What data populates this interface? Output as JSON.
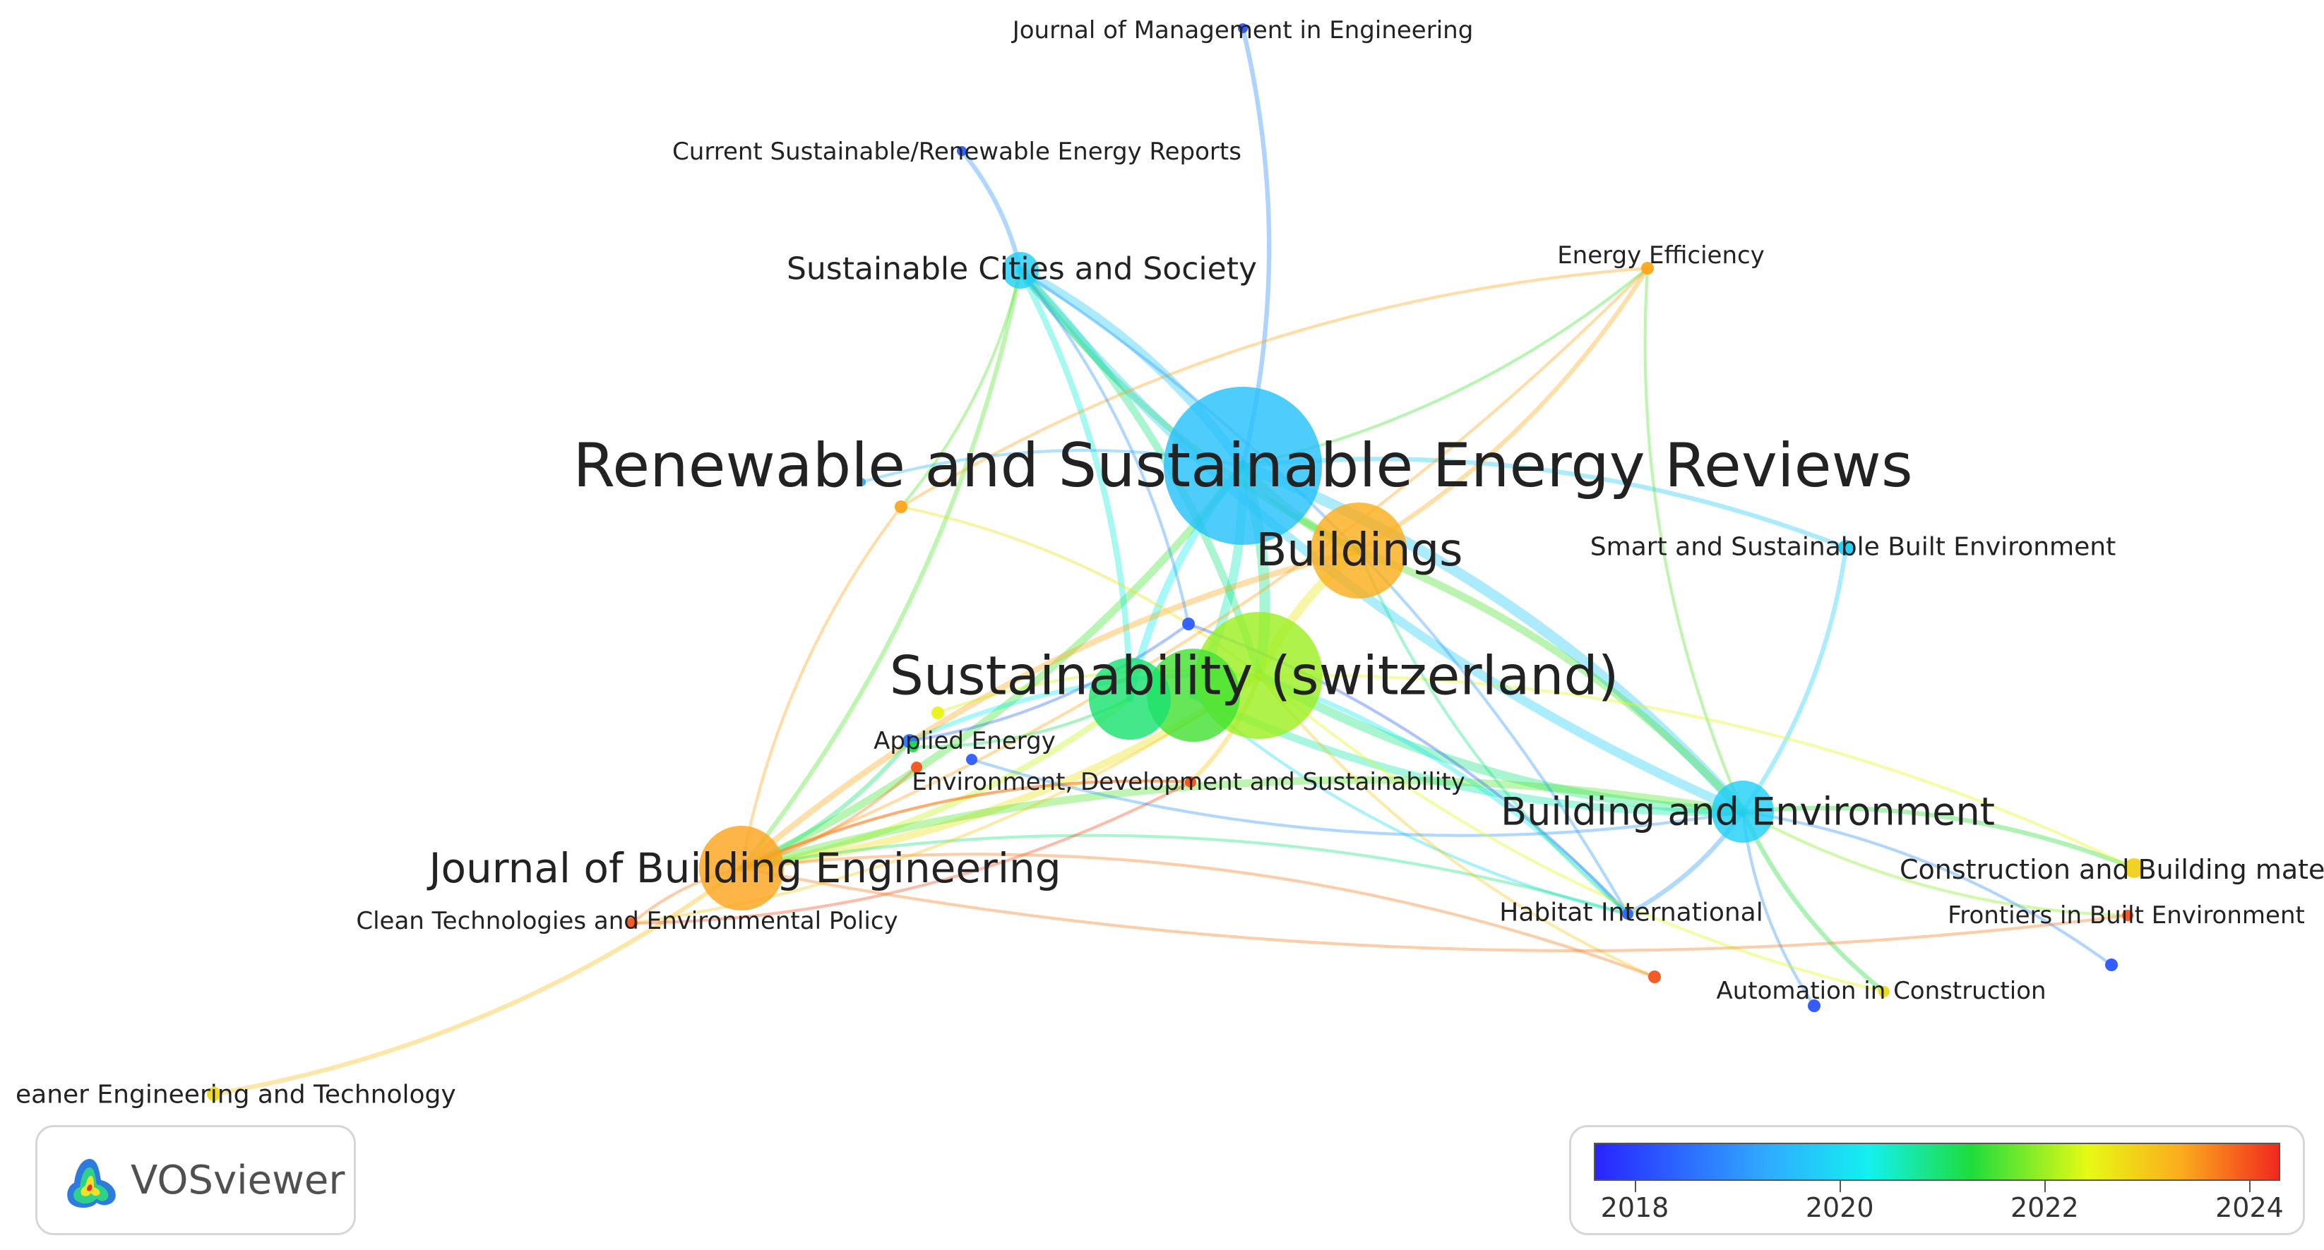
{
  "network": {
    "nodes": [
      {
        "id": "rser",
        "label": "Renewable and Sustainable Energy Reviews",
        "year": 2019.6,
        "weight": 120,
        "label_size": 86
      },
      {
        "id": "sust",
        "label": "Sustainability (switzerland)",
        "year": 2022.0,
        "weight": 100,
        "label_size": 76
      },
      {
        "id": "sust2",
        "label": "",
        "year": 2021.5,
        "weight": 70,
        "label_size": 0
      },
      {
        "id": "sust3",
        "label": "",
        "year": 2021.0,
        "weight": 55,
        "label_size": 0
      },
      {
        "id": "buildings",
        "label": "Buildings",
        "year": 2023.3,
        "weight": 66,
        "label_size": 64
      },
      {
        "id": "jbe",
        "label": "Journal of Building Engineering",
        "year": 2023.4,
        "weight": 60,
        "label_size": 58
      },
      {
        "id": "bae",
        "label": "Building and Environment",
        "year": 2019.8,
        "weight": 46,
        "label_size": 54
      },
      {
        "id": "scs",
        "label": "Sustainable Cities and Society",
        "year": 2019.8,
        "weight": 28,
        "label_size": 44
      },
      {
        "id": "jme",
        "label": "Journal of Management in Engineering",
        "year": 2018.2,
        "weight": 8,
        "label_size": 34
      },
      {
        "id": "csree",
        "label": "Current Sustainable/Renewable Energy Reports",
        "year": 2018.3,
        "weight": 8,
        "label_size": 34
      },
      {
        "id": "ee",
        "label": "Energy Efficiency",
        "year": 2023.4,
        "weight": 10,
        "label_size": 34
      },
      {
        "id": "ssbe",
        "label": "Smart and Sustainable Built Environment",
        "year": 2019.8,
        "weight": 12,
        "label_size": 36
      },
      {
        "id": "ae",
        "label": "Applied Energy",
        "year": 2018.6,
        "weight": 10,
        "label_size": 34
      },
      {
        "id": "eds",
        "label": "Environment, Development and Sustainability",
        "year": 2024.0,
        "weight": 8,
        "label_size": 34
      },
      {
        "id": "ctep",
        "label": "Clean Technologies and Environmental Policy",
        "year": 2024.0,
        "weight": 8,
        "label_size": 34
      },
      {
        "id": "cbm",
        "label": "Construction and Building materi",
        "year": 2022.9,
        "weight": 14,
        "label_size": 38
      },
      {
        "id": "fbe",
        "label": "Frontiers in Built Environment",
        "year": 2024.0,
        "weight": 8,
        "label_size": 34
      },
      {
        "id": "hi",
        "label": "Habitat International",
        "year": 2018.4,
        "weight": 8,
        "label_size": 36
      },
      {
        "id": "aic",
        "label": "Automation in Construction",
        "year": 2022.8,
        "weight": 8,
        "label_size": 34
      },
      {
        "id": "cet",
        "label": "eaner Engineering and Technology",
        "year": 2022.8,
        "weight": 10,
        "label_size": 36
      },
      {
        "id": "n_orange",
        "label": "",
        "year": 2023.4,
        "weight": 8,
        "label_size": 0
      },
      {
        "id": "n_purple_mid",
        "label": "",
        "year": 2018.3,
        "weight": 8,
        "label_size": 0
      },
      {
        "id": "n_yellow_small",
        "label": "",
        "year": 2022.5,
        "weight": 8,
        "label_size": 0
      },
      {
        "id": "n_green_small",
        "label": "",
        "year": 2021.2,
        "weight": 7,
        "label_size": 0
      },
      {
        "id": "n_red_left",
        "label": "",
        "year": 2024.0,
        "weight": 7,
        "label_size": 0
      },
      {
        "id": "n_purple_left",
        "label": "",
        "year": 2018.3,
        "weight": 7,
        "label_size": 0
      },
      {
        "id": "n_red_low",
        "label": "",
        "year": 2024.0,
        "weight": 8,
        "label_size": 0
      },
      {
        "id": "n_purple_aic",
        "label": "",
        "year": 2018.2,
        "weight": 8,
        "label_size": 0
      },
      {
        "id": "n_purple_right",
        "label": "",
        "year": 2018.2,
        "weight": 8,
        "label_size": 0
      },
      {
        "id": "n_blue_faint",
        "label": "",
        "year": 2019.2,
        "weight": 5,
        "label_size": 0
      }
    ],
    "links": [
      [
        "rser",
        "sust",
        6
      ],
      [
        "rser",
        "buildings",
        5
      ],
      [
        "rser",
        "bae",
        6
      ],
      [
        "rser",
        "scs",
        5
      ],
      [
        "rser",
        "jbe",
        4
      ],
      [
        "rser",
        "jme",
        2
      ],
      [
        "rser",
        "sust2",
        5
      ],
      [
        "rser",
        "sust3",
        4
      ],
      [
        "rser",
        "ssbe",
        2
      ],
      [
        "rser",
        "ee",
        1
      ],
      [
        "sust",
        "buildings",
        5
      ],
      [
        "sust",
        "bae",
        5
      ],
      [
        "sust",
        "jbe",
        4
      ],
      [
        "sust",
        "scs",
        4
      ],
      [
        "sust",
        "hi",
        2
      ],
      [
        "sust",
        "ae",
        2
      ],
      [
        "sust",
        "eds",
        2
      ],
      [
        "sust2",
        "bae",
        4
      ],
      [
        "sust3",
        "jbe",
        3
      ],
      [
        "sust3",
        "scs",
        3
      ],
      [
        "buildings",
        "bae",
        4
      ],
      [
        "buildings",
        "jbe",
        3
      ],
      [
        "buildings",
        "scs",
        3
      ],
      [
        "buildings",
        "ee",
        2
      ],
      [
        "jbe",
        "bae",
        4
      ],
      [
        "jbe",
        "scs",
        2
      ],
      [
        "jbe",
        "cet",
        2
      ],
      [
        "jbe",
        "ae",
        2
      ],
      [
        "jbe",
        "eds",
        1
      ],
      [
        "jbe",
        "ctep",
        1
      ],
      [
        "bae",
        "scs",
        5
      ],
      [
        "bae",
        "ssbe",
        2
      ],
      [
        "bae",
        "cbm",
        2
      ],
      [
        "bae",
        "fbe",
        1
      ],
      [
        "bae",
        "hi",
        2
      ],
      [
        "bae",
        "aic",
        2
      ],
      [
        "bae",
        "n_purple_right",
        1
      ],
      [
        "bae",
        "n_purple_aic",
        1
      ],
      [
        "bae",
        "ee",
        1
      ],
      [
        "scs",
        "csree",
        2
      ],
      [
        "scs",
        "n_orange",
        1
      ],
      [
        "n_orange",
        "jbe",
        1
      ],
      [
        "n_orange",
        "sust",
        1
      ],
      [
        "ee",
        "n_orange",
        1
      ],
      [
        "ee",
        "jbe",
        1
      ],
      [
        "hi",
        "n_purple_mid",
        1
      ],
      [
        "hi",
        "sust2",
        1
      ],
      [
        "hi",
        "jbe",
        1
      ],
      [
        "n_purple_mid",
        "ae",
        1
      ],
      [
        "n_purple_mid",
        "scs",
        1
      ],
      [
        "eds",
        "ctep",
        1
      ],
      [
        "eds",
        "jbe",
        1
      ],
      [
        "n_red_low",
        "sust",
        1
      ],
      [
        "n_red_low",
        "jbe",
        1
      ],
      [
        "n_yellow_small",
        "sust",
        1
      ],
      [
        "n_green_small",
        "sust3",
        1
      ],
      [
        "n_red_left",
        "jbe",
        1
      ],
      [
        "n_purple_left",
        "bae",
        1
      ],
      [
        "aic",
        "sust",
        1
      ],
      [
        "cbm",
        "sust",
        1
      ],
      [
        "fbe",
        "jbe",
        1
      ],
      [
        "ctep",
        "sust",
        1
      ],
      [
        "n_blue_faint",
        "rser",
        1
      ],
      [
        "buildings",
        "hi",
        1
      ],
      [
        "scs",
        "hi",
        1
      ]
    ]
  },
  "legend": {
    "year_min": 2017.6,
    "year_max": 2024.3,
    "ticks": [
      "2018",
      "2020",
      "2022",
      "2024"
    ],
    "tick_values": [
      2018,
      2020,
      2022,
      2024
    ]
  },
  "brand": {
    "name": "VOSviewer",
    "logo_icon": "vosviewer-logo-icon"
  }
}
